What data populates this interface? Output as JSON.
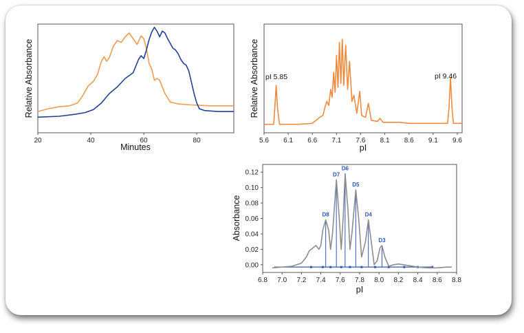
{
  "chart_data": [
    {
      "type": "line",
      "xlabel": "Minutes",
      "ylabel": "Relative Absorbance",
      "xlim": [
        20,
        94
      ],
      "ylim": [
        0,
        1
      ],
      "xticks": [
        "20",
        "40",
        "60",
        "80"
      ],
      "yaxis_ticks_shown": false,
      "grid": false,
      "colors": {
        "orange": "#f39a4e",
        "blue": "#233e96"
      },
      "series": [
        {
          "color": "#f39a4e",
          "points": [
            [
              20,
              0.11
            ],
            [
              24,
              0.14
            ],
            [
              28,
              0.16
            ],
            [
              32,
              0.17
            ],
            [
              35,
              0.2
            ],
            [
              37,
              0.28
            ],
            [
              39,
              0.38
            ],
            [
              41,
              0.43
            ],
            [
              42.5,
              0.5
            ],
            [
              44,
              0.64
            ],
            [
              45,
              0.69
            ],
            [
              46,
              0.64
            ],
            [
              47,
              0.68
            ],
            [
              48.5,
              0.8
            ],
            [
              50,
              0.86
            ],
            [
              51.5,
              0.84
            ],
            [
              53,
              0.9
            ],
            [
              54.5,
              0.94
            ],
            [
              56,
              0.88
            ],
            [
              57.5,
              0.82
            ],
            [
              59,
              0.91
            ],
            [
              60,
              0.88
            ],
            [
              61,
              0.78
            ],
            [
              62,
              0.62
            ],
            [
              63,
              0.56
            ],
            [
              64,
              0.44
            ],
            [
              65,
              0.46
            ],
            [
              66,
              0.44
            ],
            [
              67,
              0.37
            ],
            [
              68,
              0.3
            ],
            [
              70,
              0.21
            ],
            [
              73,
              0.19
            ],
            [
              78,
              0.18
            ],
            [
              85,
              0.17
            ],
            [
              94,
              0.17
            ]
          ]
        },
        {
          "color": "#233e96",
          "points": [
            [
              20,
              0.05
            ],
            [
              28,
              0.06
            ],
            [
              34,
              0.08
            ],
            [
              38,
              0.1
            ],
            [
              41,
              0.13
            ],
            [
              44,
              0.2
            ],
            [
              47,
              0.3
            ],
            [
              50,
              0.37
            ],
            [
              53,
              0.46
            ],
            [
              55,
              0.5
            ],
            [
              56,
              0.52
            ],
            [
              58,
              0.66
            ],
            [
              59,
              0.7
            ],
            [
              60,
              0.67
            ],
            [
              61,
              0.76
            ],
            [
              62,
              0.87
            ],
            [
              63,
              0.95
            ],
            [
              64,
              1.0
            ],
            [
              65,
              0.96
            ],
            [
              66,
              0.9
            ],
            [
              67,
              0.96
            ],
            [
              68,
              0.94
            ],
            [
              69,
              0.88
            ],
            [
              70,
              0.83
            ],
            [
              71,
              0.78
            ],
            [
              72,
              0.76
            ],
            [
              73,
              0.72
            ],
            [
              74,
              0.66
            ],
            [
              75,
              0.62
            ],
            [
              76,
              0.6
            ],
            [
              77,
              0.54
            ],
            [
              78,
              0.42
            ],
            [
              79,
              0.3
            ],
            [
              80,
              0.2
            ],
            [
              81,
              0.14
            ],
            [
              83,
              0.12
            ],
            [
              88,
              0.11
            ],
            [
              94,
              0.11
            ]
          ]
        }
      ]
    },
    {
      "type": "line",
      "xlabel": "pI",
      "ylabel": "Relative Absorbance",
      "xlim": [
        5.6,
        9.7
      ],
      "ylim": [
        0,
        1
      ],
      "xticks": [
        "5.6",
        "6.1",
        "6.6",
        "7.1",
        "7.6",
        "8.1",
        "8.6",
        "9.1",
        "9.6"
      ],
      "yaxis_ticks_shown": false,
      "grid": false,
      "annotations": [
        "pI 5.85",
        "pI 9.46"
      ],
      "series": [
        {
          "color": "#ef8a3c",
          "points": [
            [
              5.6,
              0.03
            ],
            [
              5.8,
              0.03
            ],
            [
              5.82,
              0.18
            ],
            [
              5.85,
              0.42
            ],
            [
              5.88,
              0.18
            ],
            [
              5.92,
              0.03
            ],
            [
              6.3,
              0.03
            ],
            [
              6.6,
              0.04
            ],
            [
              6.75,
              0.1
            ],
            [
              6.82,
              0.12
            ],
            [
              6.86,
              0.2
            ],
            [
              6.9,
              0.26
            ],
            [
              6.94,
              0.22
            ],
            [
              6.98,
              0.38
            ],
            [
              7.01,
              0.3
            ],
            [
              7.04,
              0.55
            ],
            [
              7.07,
              0.35
            ],
            [
              7.1,
              0.72
            ],
            [
              7.13,
              0.4
            ],
            [
              7.16,
              0.85
            ],
            [
              7.19,
              0.44
            ],
            [
              7.22,
              0.88
            ],
            [
              7.25,
              0.42
            ],
            [
              7.29,
              0.82
            ],
            [
              7.33,
              0.38
            ],
            [
              7.37,
              0.66
            ],
            [
              7.42,
              0.26
            ],
            [
              7.46,
              0.32
            ],
            [
              7.52,
              0.14
            ],
            [
              7.58,
              0.36
            ],
            [
              7.62,
              0.12
            ],
            [
              7.7,
              0.1
            ],
            [
              7.76,
              0.24
            ],
            [
              7.82,
              0.07
            ],
            [
              7.95,
              0.06
            ],
            [
              8.0,
              0.09
            ],
            [
              8.06,
              0.05
            ],
            [
              8.4,
              0.05
            ],
            [
              8.6,
              0.04
            ],
            [
              9.0,
              0.04
            ],
            [
              9.4,
              0.04
            ],
            [
              9.43,
              0.2
            ],
            [
              9.46,
              0.5
            ],
            [
              9.49,
              0.2
            ],
            [
              9.52,
              0.04
            ],
            [
              9.7,
              0.04
            ]
          ]
        }
      ]
    },
    {
      "type": "line",
      "xlabel": "pI",
      "ylabel": "Absorbance",
      "xlim": [
        6.8,
        8.8
      ],
      "ylim": [
        -0.01,
        0.13
      ],
      "xticks": [
        "6.8",
        "7.0",
        "7.2",
        "7.4",
        "7.6",
        "7.8",
        "8.0",
        "8.2",
        "8.4",
        "8.6",
        "8.8"
      ],
      "yticks": [
        "0.00",
        "0.02",
        "0.04",
        "0.06",
        "0.08",
        "0.10",
        "0.12"
      ],
      "grid": false,
      "peak_labels": [
        {
          "label": "D8",
          "x": 7.45,
          "y": 0.058
        },
        {
          "label": "D7",
          "x": 7.56,
          "y": 0.11
        },
        {
          "label": "D6",
          "x": 7.65,
          "y": 0.118
        },
        {
          "label": "D5",
          "x": 7.76,
          "y": 0.097
        },
        {
          "label": "D4",
          "x": 7.89,
          "y": 0.058
        },
        {
          "label": "D3",
          "x": 8.03,
          "y": 0.025
        }
      ],
      "series": [
        {
          "color": "#8c8c8c",
          "points": [
            [
              6.9,
              -0.004
            ],
            [
              7.0,
              -0.003
            ],
            [
              7.1,
              -0.002
            ],
            [
              7.2,
              0.002
            ],
            [
              7.25,
              0.01
            ],
            [
              7.28,
              0.018
            ],
            [
              7.32,
              0.022
            ],
            [
              7.35,
              0.025
            ],
            [
              7.38,
              0.02
            ],
            [
              7.4,
              0.025
            ],
            [
              7.42,
              0.045
            ],
            [
              7.45,
              0.058
            ],
            [
              7.48,
              0.045
            ],
            [
              7.5,
              0.02
            ],
            [
              7.52,
              0.04
            ],
            [
              7.56,
              0.11
            ],
            [
              7.59,
              0.06
            ],
            [
              7.61,
              0.02
            ],
            [
              7.63,
              0.06
            ],
            [
              7.65,
              0.118
            ],
            [
              7.68,
              0.07
            ],
            [
              7.7,
              0.02
            ],
            [
              7.72,
              0.04
            ],
            [
              7.76,
              0.097
            ],
            [
              7.79,
              0.06
            ],
            [
              7.82,
              0.01
            ],
            [
              7.86,
              0.03
            ],
            [
              7.89,
              0.058
            ],
            [
              7.92,
              0.03
            ],
            [
              7.95,
              0.0
            ],
            [
              7.98,
              0.005
            ],
            [
              8.01,
              0.022
            ],
            [
              8.03,
              0.025
            ],
            [
              8.06,
              0.01
            ],
            [
              8.1,
              -0.002
            ],
            [
              8.15,
              0.0
            ],
            [
              8.2,
              0.001
            ],
            [
              8.3,
              -0.001
            ],
            [
              8.4,
              -0.003
            ],
            [
              8.5,
              -0.004
            ],
            [
              8.6,
              -0.004
            ],
            [
              8.7,
              -0.003
            ],
            [
              8.75,
              -0.003
            ]
          ]
        }
      ],
      "baseline": {
        "color": "#2d56b8",
        "x_range": [
          6.92,
          8.55
        ],
        "y": -0.003,
        "marker_x": [
          7.3,
          7.42,
          7.5,
          7.61,
          7.7,
          7.82,
          7.96,
          8.1,
          8.26,
          8.4,
          8.55
        ]
      }
    }
  ]
}
